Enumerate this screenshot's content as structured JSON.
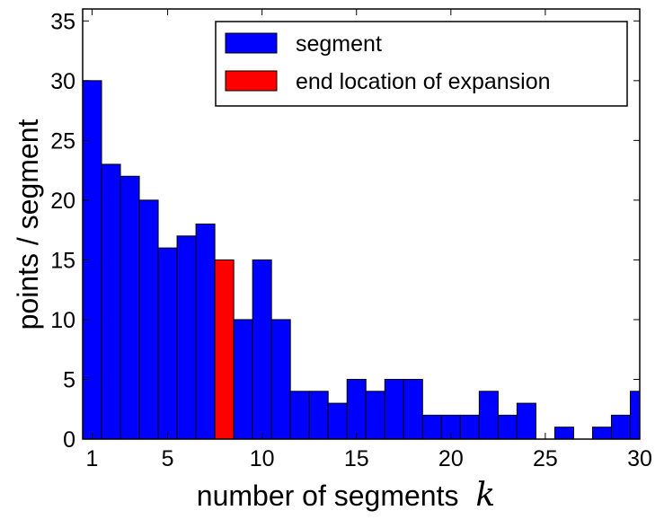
{
  "chart_data": {
    "type": "bar",
    "xlabel": "number of segments",
    "xlabel_var": "k",
    "ylabel": "points / segment",
    "xlim": [
      0.5,
      30
    ],
    "ylim": [
      0,
      36
    ],
    "xticks": [
      1,
      5,
      10,
      15,
      20,
      25,
      30
    ],
    "yticks": [
      0,
      5,
      10,
      15,
      20,
      25,
      30,
      35
    ],
    "grid": false,
    "legend_position": "top-right",
    "colors": {
      "segment": "#0000ff",
      "expansion_end": "#ff0000",
      "edge": "#000000"
    },
    "legend": [
      {
        "label": "segment",
        "color": "#0000ff"
      },
      {
        "label": "end location of expansion",
        "color": "#ff0000"
      }
    ],
    "bars": [
      {
        "x": 1,
        "value": 30,
        "series": "segment"
      },
      {
        "x": 2,
        "value": 23,
        "series": "segment"
      },
      {
        "x": 3,
        "value": 22,
        "series": "segment"
      },
      {
        "x": 4,
        "value": 20,
        "series": "segment"
      },
      {
        "x": 5,
        "value": 16,
        "series": "segment"
      },
      {
        "x": 6,
        "value": 17,
        "series": "segment"
      },
      {
        "x": 7,
        "value": 18,
        "series": "segment"
      },
      {
        "x": 8,
        "value": 15,
        "series": "expansion_end"
      },
      {
        "x": 9,
        "value": 10,
        "series": "segment"
      },
      {
        "x": 10,
        "value": 15,
        "series": "segment"
      },
      {
        "x": 11,
        "value": 10,
        "series": "segment"
      },
      {
        "x": 12,
        "value": 4,
        "series": "segment"
      },
      {
        "x": 13,
        "value": 4,
        "series": "segment"
      },
      {
        "x": 14,
        "value": 3,
        "series": "segment"
      },
      {
        "x": 15,
        "value": 5,
        "series": "segment"
      },
      {
        "x": 16,
        "value": 4,
        "series": "segment"
      },
      {
        "x": 17,
        "value": 5,
        "series": "segment"
      },
      {
        "x": 18,
        "value": 5,
        "series": "segment"
      },
      {
        "x": 19,
        "value": 2,
        "series": "segment"
      },
      {
        "x": 20,
        "value": 2,
        "series": "segment"
      },
      {
        "x": 21,
        "value": 2,
        "series": "segment"
      },
      {
        "x": 22,
        "value": 4,
        "series": "segment"
      },
      {
        "x": 23,
        "value": 2,
        "series": "segment"
      },
      {
        "x": 24,
        "value": 3,
        "series": "segment"
      },
      {
        "x": 25,
        "value": 0,
        "series": "segment"
      },
      {
        "x": 26,
        "value": 1,
        "series": "segment"
      },
      {
        "x": 27,
        "value": 0,
        "series": "segment"
      },
      {
        "x": 28,
        "value": 1,
        "series": "segment"
      },
      {
        "x": 29,
        "value": 2,
        "series": "segment"
      },
      {
        "x": 30,
        "value": 4,
        "series": "segment"
      }
    ]
  }
}
